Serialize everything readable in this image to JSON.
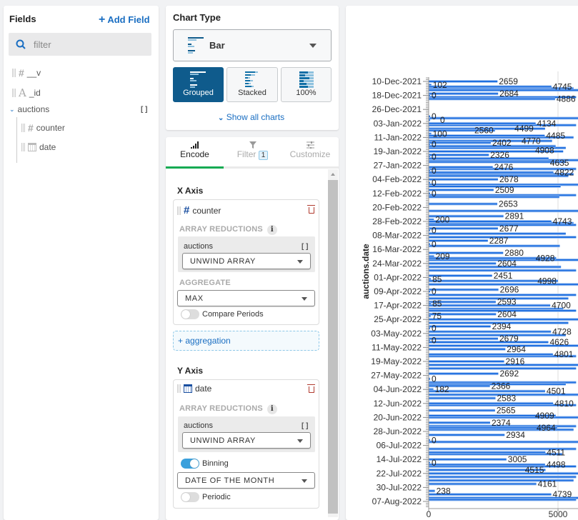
{
  "fields_panel": {
    "title": "Fields",
    "add_field": "Add Field",
    "filter_placeholder": "filter",
    "fields": [
      {
        "name": "__v",
        "type": "number"
      },
      {
        "name": "_id",
        "type": "string"
      },
      {
        "name": "auctions",
        "type": "array"
      },
      {
        "name": "counter",
        "type": "number"
      },
      {
        "name": "date",
        "type": "date"
      }
    ]
  },
  "chart_type": {
    "title": "Chart Type",
    "selected": "Bar",
    "variants": [
      "Grouped",
      "Stacked",
      "100%"
    ],
    "selected_variant": "Grouped",
    "show_all": "Show all charts"
  },
  "tabs": {
    "encode": "Encode",
    "filter": "Filter",
    "filter_count": "1",
    "customize": "Customize"
  },
  "x_axis": {
    "title": "X Axis",
    "field": "counter",
    "array_reductions": "ARRAY REDUCTIONS",
    "array_field": "auctions",
    "reduction": "UNWIND ARRAY",
    "aggregate_label": "AGGREGATE",
    "aggregate": "MAX",
    "compare_periods": "Compare Periods",
    "compare_on": false,
    "add_aggregation": "+ aggregation"
  },
  "y_axis": {
    "title": "Y Axis",
    "field": "date",
    "array_reductions": "ARRAY REDUCTIONS",
    "array_field": "auctions",
    "reduction": "UNWIND ARRAY",
    "binning": "Binning",
    "binning_on": true,
    "bin": "DATE OF THE MONTH",
    "periodic": "Periodic",
    "periodic_on": false
  },
  "colors": {
    "bar": "#1f6fe0",
    "bar_edge": "#a9c8f2",
    "accent": "#1a6ec2",
    "selected": "#0f5b8c",
    "tab_underline": "#13aa52"
  },
  "chart_data": {
    "type": "bar",
    "orientation": "horizontal",
    "ylabel": "auctions.date",
    "xlabel": "",
    "x_ticks": [
      "0",
      "5000"
    ],
    "xlim": [
      0,
      5800
    ],
    "y_ticks": [
      "10-Dec-2021",
      "18-Dec-2021",
      "26-Dec-2021",
      "03-Jan-2022",
      "11-Jan-2022",
      "19-Jan-2022",
      "27-Jan-2022",
      "04-Feb-2022",
      "12-Feb-2022",
      "20-Feb-2022",
      "28-Feb-2022",
      "08-Mar-2022",
      "16-Mar-2022",
      "24-Mar-2022",
      "01-Apr-2022",
      "09-Apr-2022",
      "17-Apr-2022",
      "25-Apr-2022",
      "03-May-2022",
      "11-May-2022",
      "19-May-2022",
      "27-May-2022",
      "04-Jun-2022",
      "12-Jun-2022",
      "20-Jun-2022",
      "28-Jun-2022",
      "06-Jul-2022",
      "14-Jul-2022",
      "22-Jul-2022",
      "30-Jul-2022",
      "07-Aug-2022"
    ],
    "ylim": [
      "2021-12-10",
      "2022-08-07"
    ],
    "labeled_bars": [
      [
        "2021-12-10",
        2659
      ],
      [
        "2021-12-12",
        102
      ],
      [
        "2021-12-13",
        4745
      ],
      [
        "2021-12-17",
        2684
      ],
      [
        "2021-12-18",
        0
      ],
      [
        "2021-12-20",
        4886
      ],
      [
        "2021-12-30",
        0
      ],
      [
        "2022-01-01",
        0
      ],
      [
        "2022-01-03",
        4134
      ],
      [
        "2022-01-06",
        4499
      ],
      [
        "2022-01-07",
        2560
      ],
      [
        "2022-01-09",
        100
      ],
      [
        "2022-01-10",
        4485
      ],
      [
        "2022-01-13",
        4770
      ],
      [
        "2022-01-14",
        2402
      ],
      [
        "2022-01-15",
        0
      ],
      [
        "2022-01-16",
        4908
      ],
      [
        "2022-01-21",
        2326
      ],
      [
        "2022-01-22",
        0
      ],
      [
        "2022-01-23",
        4635
      ],
      [
        "2022-01-28",
        2476
      ],
      [
        "2022-01-30",
        0
      ],
      [
        "2022-01-31",
        4822
      ],
      [
        "2022-02-04",
        2678
      ],
      [
        "2022-02-06",
        0
      ],
      [
        "2022-02-10",
        2509
      ],
      [
        "2022-02-12",
        0
      ],
      [
        "2022-02-18",
        2653
      ],
      [
        "2022-02-25",
        2891
      ],
      [
        "2022-02-27",
        200
      ],
      [
        "2022-02-28",
        4743
      ],
      [
        "2022-03-04",
        2677
      ],
      [
        "2022-03-05",
        0
      ],
      [
        "2022-03-11",
        2287
      ],
      [
        "2022-03-13",
        0
      ],
      [
        "2022-03-18",
        2880
      ],
      [
        "2022-03-20",
        209
      ],
      [
        "2022-03-21",
        4928
      ],
      [
        "2022-03-24",
        2604
      ],
      [
        "2022-03-31",
        2451
      ],
      [
        "2022-04-02",
        85
      ],
      [
        "2022-04-03",
        4998
      ],
      [
        "2022-04-08",
        2696
      ],
      [
        "2022-04-09",
        0
      ],
      [
        "2022-04-15",
        2593
      ],
      [
        "2022-04-16",
        85
      ],
      [
        "2022-04-17",
        4700
      ],
      [
        "2022-04-22",
        2604
      ],
      [
        "2022-04-23",
        75
      ],
      [
        "2022-04-29",
        2394
      ],
      [
        "2022-04-30",
        0
      ],
      [
        "2022-05-02",
        4728
      ],
      [
        "2022-05-06",
        2679
      ],
      [
        "2022-05-07",
        0
      ],
      [
        "2022-05-08",
        4626
      ],
      [
        "2022-05-12",
        2964
      ],
      [
        "2022-05-15",
        4801
      ],
      [
        "2022-05-19",
        2916
      ],
      [
        "2022-05-26",
        2692
      ],
      [
        "2022-05-29",
        0
      ],
      [
        "2022-06-02",
        2366
      ],
      [
        "2022-06-04",
        182
      ],
      [
        "2022-06-05",
        4501
      ],
      [
        "2022-06-09",
        2583
      ],
      [
        "2022-06-12",
        4810
      ],
      [
        "2022-06-16",
        2565
      ],
      [
        "2022-06-19",
        4909
      ],
      [
        "2022-06-23",
        2374
      ],
      [
        "2022-06-26",
        4964
      ],
      [
        "2022-06-30",
        2934
      ],
      [
        "2022-07-03",
        0
      ],
      [
        "2022-07-10",
        4511
      ],
      [
        "2022-07-14",
        3005
      ],
      [
        "2022-07-16",
        0
      ],
      [
        "2022-07-17",
        4498
      ],
      [
        "2022-07-20",
        4515
      ],
      [
        "2022-07-28",
        4161
      ],
      [
        "2022-08-01",
        238
      ],
      [
        "2022-08-03",
        4739
      ]
    ],
    "long_bars_estimated": [
      [
        "2021-12-14",
        5600
      ],
      [
        "2021-12-15",
        5800
      ],
      [
        "2021-12-19",
        5700
      ],
      [
        "2021-12-31",
        5900
      ],
      [
        "2022-01-04",
        5700
      ],
      [
        "2022-01-11",
        5600
      ],
      [
        "2022-01-17",
        5300
      ],
      [
        "2022-01-19",
        5200
      ],
      [
        "2022-01-24",
        5800
      ],
      [
        "2022-01-25",
        5300
      ],
      [
        "2022-01-29",
        5700
      ],
      [
        "2022-02-01",
        5600
      ],
      [
        "2022-02-02",
        5400
      ],
      [
        "2022-02-07",
        5900
      ],
      [
        "2022-02-08",
        5100
      ],
      [
        "2022-02-13",
        5700
      ],
      [
        "2022-02-14",
        5050
      ],
      [
        "2022-02-22",
        5800
      ],
      [
        "2022-03-01",
        5600
      ],
      [
        "2022-03-02",
        5700
      ],
      [
        "2022-03-07",
        5300
      ],
      [
        "2022-03-09",
        5700
      ],
      [
        "2022-03-14",
        5070
      ],
      [
        "2022-03-22",
        5800
      ],
      [
        "2022-03-26",
        5115
      ],
      [
        "2022-03-28",
        5700
      ],
      [
        "2022-04-05",
        5800
      ],
      [
        "2022-04-11",
        5700
      ],
      [
        "2022-04-13",
        5400
      ],
      [
        "2022-04-19",
        5200
      ],
      [
        "2022-04-20",
        5700
      ],
      [
        "2022-04-25",
        5800
      ],
      [
        "2022-04-27",
        5400
      ],
      [
        "2022-05-04",
        5300
      ],
      [
        "2022-05-10",
        5800
      ],
      [
        "2022-05-16",
        5700
      ],
      [
        "2022-05-21",
        5800
      ],
      [
        "2022-05-23",
        5700
      ],
      [
        "2022-05-31",
        5700
      ],
      [
        "2022-06-01",
        5300
      ],
      [
        "2022-06-07",
        5800
      ],
      [
        "2022-06-13",
        5700
      ],
      [
        "2022-06-20",
        5800
      ],
      [
        "2022-06-25",
        5700
      ],
      [
        "2022-06-27",
        5600
      ],
      [
        "2022-07-04",
        5900
      ],
      [
        "2022-07-08",
        5700
      ],
      [
        "2022-07-11",
        5160
      ],
      [
        "2022-07-18",
        5700
      ],
      [
        "2022-07-22",
        5800
      ],
      [
        "2022-07-24",
        5700
      ],
      [
        "2022-07-26",
        5600
      ],
      [
        "2022-08-05",
        5800
      ],
      [
        "2022-08-06",
        5700
      ]
    ]
  }
}
